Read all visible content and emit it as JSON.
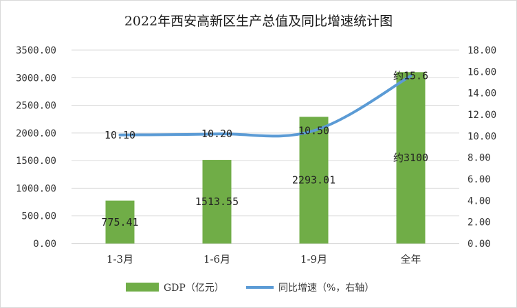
{
  "chart_data": {
    "type": "bar+line",
    "title": "2022年西安高新区生产总值及同比增速统计图",
    "categories": [
      "1-3月",
      "1-6月",
      "1-9月",
      "全年"
    ],
    "series": [
      {
        "name": "GDP（亿元）",
        "type": "bar",
        "axis": "left",
        "values": [
          775.41,
          1513.55,
          2293.01,
          3100
        ],
        "labels": [
          "775.41",
          "1513.55",
          "2293.01",
          "约3100"
        ],
        "color": "#70ad47"
      },
      {
        "name": "同比增速（%，右轴）",
        "type": "line",
        "axis": "right",
        "values": [
          10.1,
          10.2,
          10.5,
          15.6
        ],
        "labels": [
          "10.10",
          "10.20",
          "10.50",
          "约15.6"
        ],
        "color": "#5b9bd5"
      }
    ],
    "left_axis": {
      "ylim": [
        0,
        3500
      ],
      "ticks": [
        "0.00",
        "500.00",
        "1000.00",
        "1500.00",
        "2000.00",
        "2500.00",
        "3000.00",
        "3500.00"
      ]
    },
    "right_axis": {
      "ylim": [
        0,
        18
      ],
      "ticks": [
        "0.00",
        "2.00",
        "4.00",
        "6.00",
        "8.00",
        "10.00",
        "12.00",
        "14.00",
        "16.00",
        "18.00"
      ]
    },
    "grid": true,
    "legend": "bottom"
  }
}
